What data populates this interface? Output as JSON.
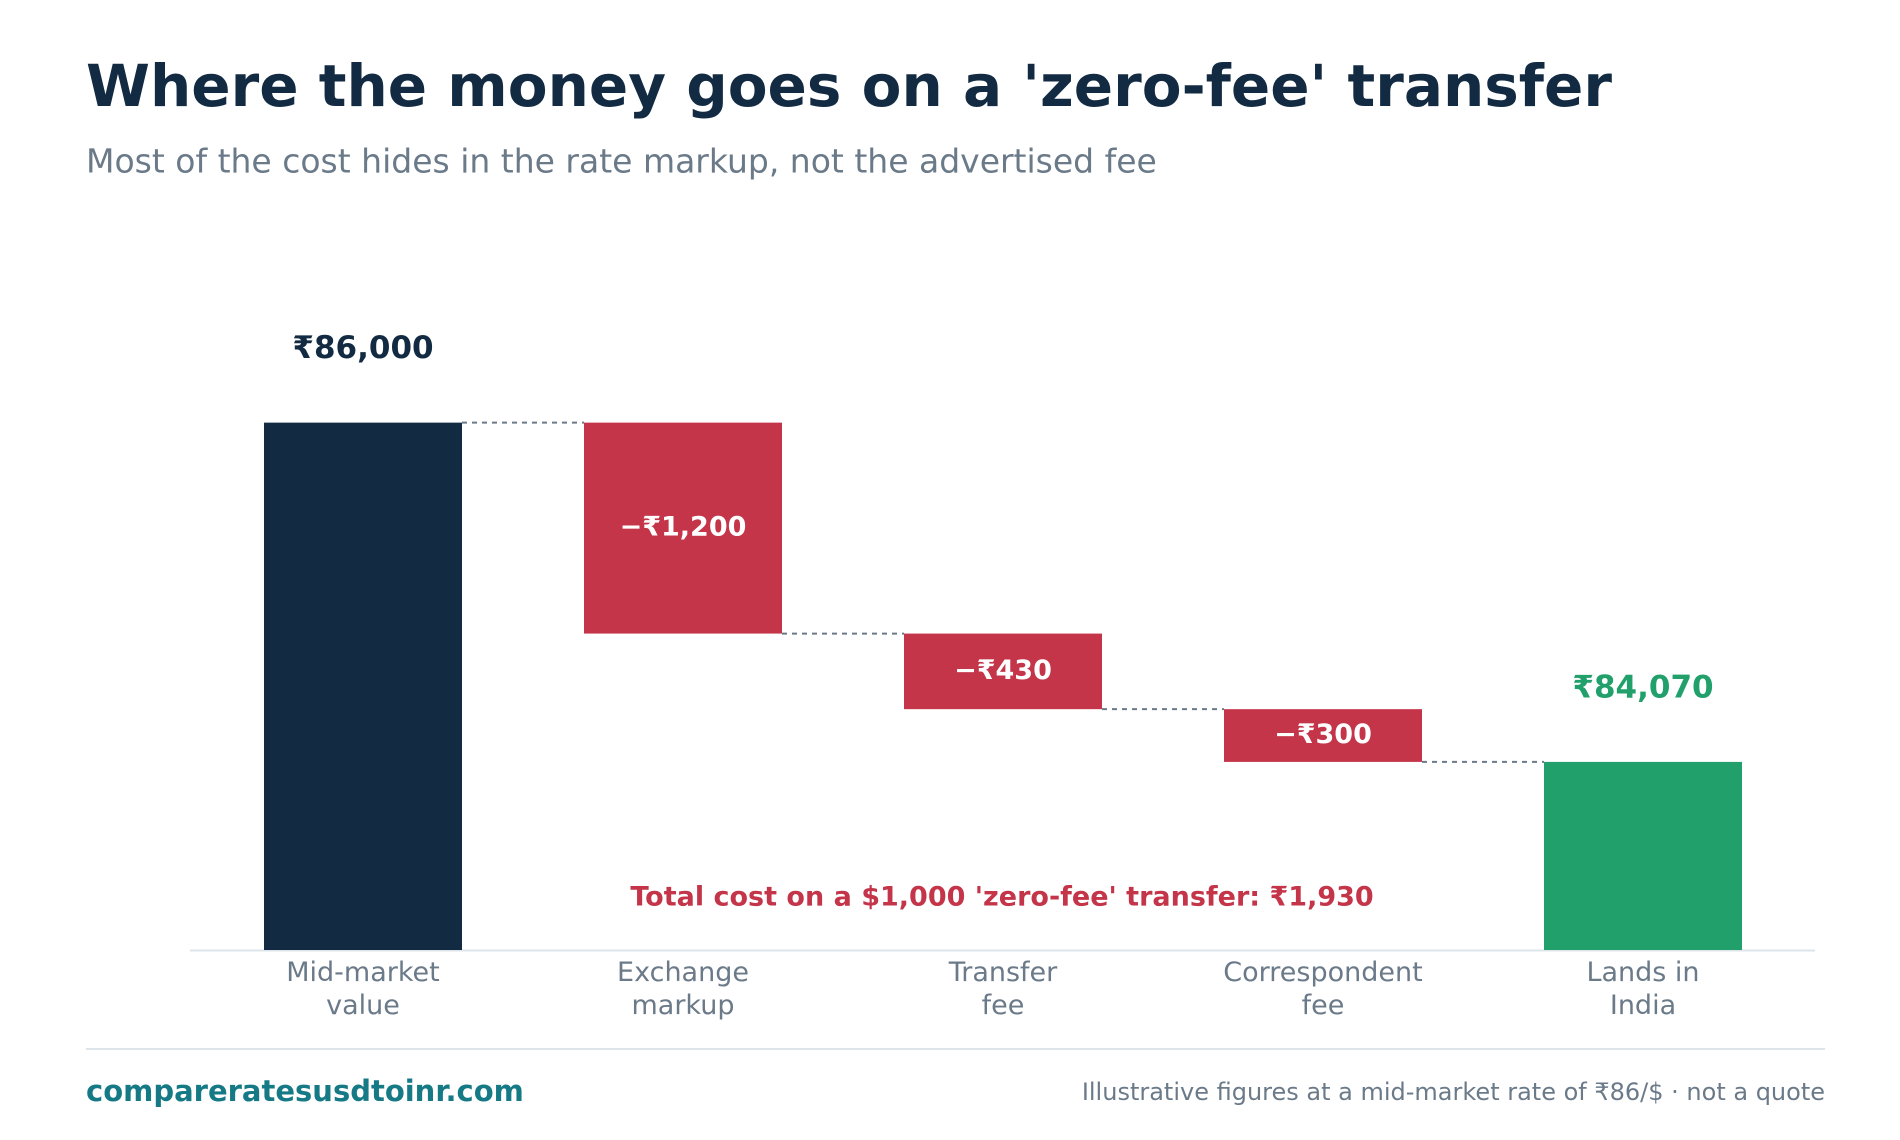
{
  "chart_data": {
    "type": "waterfall",
    "title": "Where the money goes on a 'zero-fee' transfer",
    "subtitle": "Most of the cost hides in the rate markup, not the advertised fee",
    "categories": [
      "Mid-market\nvalue",
      "Exchange\nmarkup",
      "Transfer\nfee",
      "Correspondent\nfee",
      "Lands in\nIndia"
    ],
    "measures": [
      "absolute",
      "relative",
      "relative",
      "relative",
      "total"
    ],
    "values": [
      86000,
      -1200,
      -430,
      -300,
      84070
    ],
    "value_labels": [
      "₹86,000",
      "−₹1,200",
      "−₹430",
      "−₹300",
      "₹84,070"
    ],
    "colors": [
      "#122a42",
      "#c4354a",
      "#c4354a",
      "#c4354a",
      "#21a06b"
    ],
    "ylim": [
      83000,
      86800
    ],
    "annotation": "Total cost on a $1,000 'zero-fee' transfer: ₹1,930"
  },
  "footer": {
    "site": "compareratesusdtoinr.com",
    "note": "Illustrative figures at a mid-market rate of ₹86/$ · not a quote"
  }
}
